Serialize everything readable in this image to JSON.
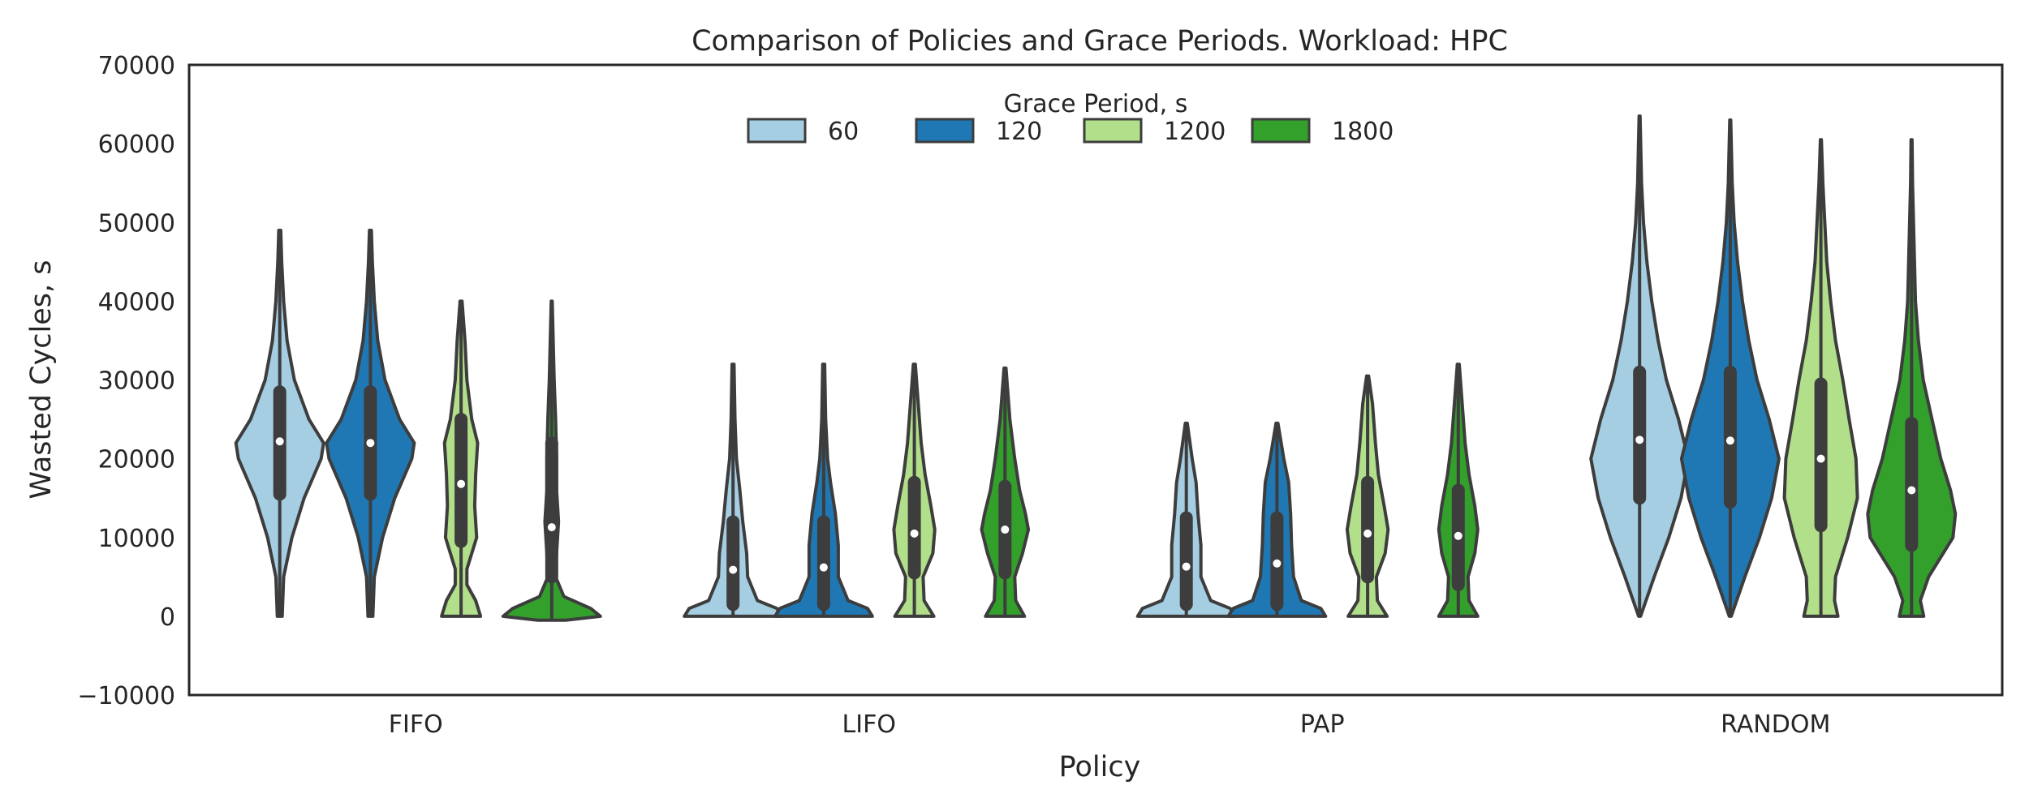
{
  "chart_data": {
    "type": "violin",
    "title": "Comparison of Policies and Grace Periods. Workload: HPC",
    "xlabel": "Policy",
    "ylabel": "Wasted Cycles, s",
    "ylim": [
      -10000,
      70000
    ],
    "yticks": [
      -10000,
      0,
      10000,
      20000,
      30000,
      40000,
      50000,
      60000,
      70000
    ],
    "ytick_labels": [
      "−10000",
      "0",
      "10000",
      "20000",
      "30000",
      "40000",
      "50000",
      "60000",
      "70000"
    ],
    "categories": [
      "FIFO",
      "LIFO",
      "PAP",
      "RANDOM"
    ],
    "legend": {
      "title": "Grace Period, s",
      "placement": "upper-center",
      "entries": [
        "60",
        "120",
        "1200",
        "1800"
      ]
    },
    "colors": {
      "60": "#a6cee3",
      "120": "#1f78b4",
      "1200": "#b2df8a",
      "1800": "#33a02c",
      "outline": "#3d3d3d",
      "axes": "#262626"
    },
    "series": [
      {
        "name": "60",
        "violins": [
          {
            "min": 0,
            "max": 49000,
            "q1": 15500,
            "median": 22200,
            "q3": 28500,
            "density": [
              [
                0,
                0.05
              ],
              [
                5000,
                0.08
              ],
              [
                10000,
                0.25
              ],
              [
                15000,
                0.5
              ],
              [
                20000,
                0.85
              ],
              [
                22000,
                0.9
              ],
              [
                25000,
                0.6
              ],
              [
                30000,
                0.3
              ],
              [
                35000,
                0.15
              ],
              [
                40000,
                0.08
              ],
              [
                45000,
                0.04
              ],
              [
                49000,
                0.02
              ]
            ]
          },
          {
            "min": 0,
            "max": 32000,
            "q1": 1500,
            "median": 5900,
            "q3": 12000,
            "density": [
              [
                0,
                1.0
              ],
              [
                1000,
                0.9
              ],
              [
                2000,
                0.5
              ],
              [
                5000,
                0.3
              ],
              [
                8000,
                0.28
              ],
              [
                12000,
                0.2
              ],
              [
                16000,
                0.14
              ],
              [
                20000,
                0.07
              ],
              [
                25000,
                0.04
              ],
              [
                32000,
                0.02
              ]
            ]
          },
          {
            "min": 0,
            "max": 24500,
            "q1": 1500,
            "median": 6300,
            "q3": 12500,
            "density": [
              [
                0,
                1.0
              ],
              [
                1000,
                0.9
              ],
              [
                2000,
                0.5
              ],
              [
                5000,
                0.3
              ],
              [
                9000,
                0.3
              ],
              [
                13000,
                0.24
              ],
              [
                17000,
                0.2
              ],
              [
                20000,
                0.12
              ],
              [
                24500,
                0.02
              ]
            ]
          },
          {
            "min": 0,
            "max": 63500,
            "q1": 15000,
            "median": 22400,
            "q3": 31000,
            "density": [
              [
                0,
                0.02
              ],
              [
                5000,
                0.3
              ],
              [
                10000,
                0.6
              ],
              [
                15000,
                0.85
              ],
              [
                20000,
                1.0
              ],
              [
                25000,
                0.8
              ],
              [
                30000,
                0.55
              ],
              [
                35000,
                0.38
              ],
              [
                40000,
                0.25
              ],
              [
                45000,
                0.15
              ],
              [
                50000,
                0.08
              ],
              [
                55000,
                0.04
              ],
              [
                63500,
                0.01
              ]
            ]
          }
        ]
      },
      {
        "name": "120",
        "violins": [
          {
            "min": 0,
            "max": 49000,
            "q1": 15500,
            "median": 22000,
            "q3": 28500,
            "density": [
              [
                0,
                0.05
              ],
              [
                5000,
                0.08
              ],
              [
                10000,
                0.25
              ],
              [
                15000,
                0.5
              ],
              [
                20000,
                0.85
              ],
              [
                22000,
                0.9
              ],
              [
                25000,
                0.6
              ],
              [
                30000,
                0.3
              ],
              [
                35000,
                0.15
              ],
              [
                40000,
                0.08
              ],
              [
                45000,
                0.04
              ],
              [
                49000,
                0.02
              ]
            ]
          },
          {
            "min": 0,
            "max": 32000,
            "q1": 1500,
            "median": 6200,
            "q3": 12000,
            "density": [
              [
                0,
                1.0
              ],
              [
                1000,
                0.9
              ],
              [
                2000,
                0.5
              ],
              [
                5000,
                0.3
              ],
              [
                9000,
                0.3
              ],
              [
                13000,
                0.24
              ],
              [
                17000,
                0.14
              ],
              [
                20000,
                0.08
              ],
              [
                25000,
                0.04
              ],
              [
                32000,
                0.02
              ]
            ]
          },
          {
            "min": 0,
            "max": 24500,
            "q1": 1500,
            "median": 6700,
            "q3": 12500,
            "density": [
              [
                0,
                1.0
              ],
              [
                1000,
                0.9
              ],
              [
                2000,
                0.5
              ],
              [
                5000,
                0.34
              ],
              [
                9000,
                0.3
              ],
              [
                13000,
                0.28
              ],
              [
                17000,
                0.24
              ],
              [
                20000,
                0.14
              ],
              [
                24500,
                0.02
              ]
            ]
          },
          {
            "min": 0,
            "max": 63000,
            "q1": 14500,
            "median": 22300,
            "q3": 31000,
            "density": [
              [
                0,
                0.02
              ],
              [
                5000,
                0.3
              ],
              [
                10000,
                0.6
              ],
              [
                15000,
                0.85
              ],
              [
                20000,
                1.0
              ],
              [
                25000,
                0.8
              ],
              [
                30000,
                0.55
              ],
              [
                35000,
                0.38
              ],
              [
                40000,
                0.25
              ],
              [
                45000,
                0.15
              ],
              [
                50000,
                0.08
              ],
              [
                55000,
                0.04
              ],
              [
                63000,
                0.01
              ]
            ]
          }
        ]
      },
      {
        "name": "1200",
        "violins": [
          {
            "min": 0,
            "max": 40000,
            "q1": 9500,
            "median": 16800,
            "q3": 25000,
            "density": [
              [
                0,
                0.4
              ],
              [
                2000,
                0.3
              ],
              [
                4000,
                0.12
              ],
              [
                6000,
                0.12
              ],
              [
                10000,
                0.32
              ],
              [
                14000,
                0.28
              ],
              [
                18000,
                0.3
              ],
              [
                22000,
                0.34
              ],
              [
                25000,
                0.22
              ],
              [
                30000,
                0.12
              ],
              [
                35000,
                0.08
              ],
              [
                40000,
                0.02
              ]
            ]
          },
          {
            "min": 0,
            "max": 32000,
            "q1": 5500,
            "median": 10500,
            "q3": 17000,
            "density": [
              [
                0,
                0.4
              ],
              [
                2000,
                0.2
              ],
              [
                5000,
                0.18
              ],
              [
                8000,
                0.38
              ],
              [
                11000,
                0.42
              ],
              [
                14000,
                0.34
              ],
              [
                18000,
                0.22
              ],
              [
                22000,
                0.14
              ],
              [
                27000,
                0.08
              ],
              [
                32000,
                0.02
              ]
            ]
          },
          {
            "min": 0,
            "max": 30500,
            "q1": 5000,
            "median": 10500,
            "q3": 17000,
            "density": [
              [
                0,
                0.4
              ],
              [
                2000,
                0.2
              ],
              [
                5000,
                0.18
              ],
              [
                8000,
                0.36
              ],
              [
                11000,
                0.42
              ],
              [
                14000,
                0.34
              ],
              [
                18000,
                0.22
              ],
              [
                22000,
                0.16
              ],
              [
                27000,
                0.1
              ],
              [
                30500,
                0.02
              ]
            ]
          },
          {
            "min": 0,
            "max": 60500,
            "q1": 11500,
            "median": 20000,
            "q3": 29500,
            "density": [
              [
                0,
                0.35
              ],
              [
                2000,
                0.28
              ],
              [
                5000,
                0.3
              ],
              [
                10000,
                0.55
              ],
              [
                15000,
                0.75
              ],
              [
                20000,
                0.72
              ],
              [
                25000,
                0.58
              ],
              [
                30000,
                0.45
              ],
              [
                35000,
                0.3
              ],
              [
                40000,
                0.2
              ],
              [
                45000,
                0.12
              ],
              [
                50000,
                0.08
              ],
              [
                55000,
                0.04
              ],
              [
                60500,
                0.01
              ]
            ]
          }
        ]
      },
      {
        "name": "1800",
        "violins": [
          {
            "min": -500,
            "max": 40000,
            "q1": 5000,
            "median": 11300,
            "q3": 22000,
            "density": [
              [
                -500,
                0.3
              ],
              [
                0,
                1.0
              ],
              [
                1000,
                0.8
              ],
              [
                2500,
                0.25
              ],
              [
                5000,
                0.08
              ],
              [
                8000,
                0.1
              ],
              [
                12000,
                0.14
              ],
              [
                16000,
                0.1
              ],
              [
                20000,
                0.1
              ],
              [
                25000,
                0.08
              ],
              [
                30000,
                0.05
              ],
              [
                35000,
                0.03
              ],
              [
                40000,
                0.01
              ]
            ]
          },
          {
            "min": 0,
            "max": 31500,
            "q1": 5500,
            "median": 11000,
            "q3": 16500,
            "density": [
              [
                0,
                0.4
              ],
              [
                2000,
                0.22
              ],
              [
                5000,
                0.2
              ],
              [
                8000,
                0.36
              ],
              [
                11000,
                0.48
              ],
              [
                13000,
                0.42
              ],
              [
                16000,
                0.3
              ],
              [
                20000,
                0.2
              ],
              [
                25000,
                0.1
              ],
              [
                31500,
                0.02
              ]
            ]
          },
          {
            "min": 0,
            "max": 32000,
            "q1": 4000,
            "median": 10200,
            "q3": 16000,
            "density": [
              [
                0,
                0.4
              ],
              [
                2000,
                0.22
              ],
              [
                5000,
                0.2
              ],
              [
                8000,
                0.34
              ],
              [
                11000,
                0.4
              ],
              [
                14000,
                0.34
              ],
              [
                18000,
                0.22
              ],
              [
                22000,
                0.14
              ],
              [
                27000,
                0.08
              ],
              [
                32000,
                0.02
              ]
            ]
          },
          {
            "min": 0,
            "max": 60500,
            "q1": 9000,
            "median": 16000,
            "q3": 24500,
            "density": [
              [
                0,
                0.25
              ],
              [
                2000,
                0.18
              ],
              [
                5000,
                0.35
              ],
              [
                10000,
                0.85
              ],
              [
                13000,
                0.9
              ],
              [
                16000,
                0.8
              ],
              [
                20000,
                0.6
              ],
              [
                25000,
                0.42
              ],
              [
                30000,
                0.24
              ],
              [
                35000,
                0.14
              ],
              [
                40000,
                0.08
              ],
              [
                45000,
                0.06
              ],
              [
                50000,
                0.04
              ],
              [
                55000,
                0.02
              ],
              [
                60500,
                0.01
              ]
            ]
          }
        ]
      }
    ]
  }
}
